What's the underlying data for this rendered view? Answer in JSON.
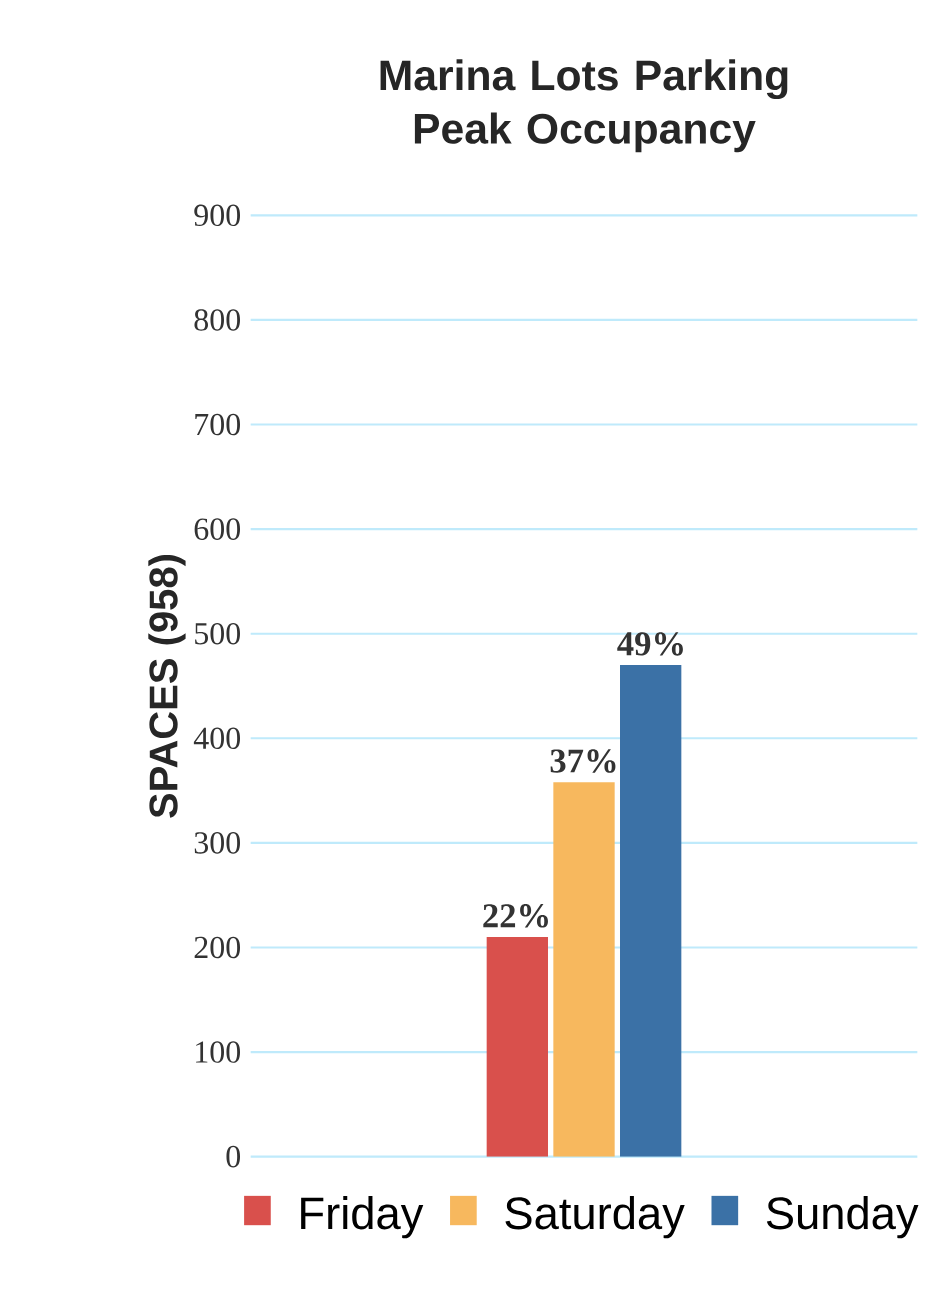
{
  "chart_data": {
    "type": "bar",
    "title": "Marina Lots Parking Peak Occupancy",
    "ylabel": "SPACES (958)",
    "categories": [
      null
    ],
    "series": [
      {
        "name": "Friday",
        "color": "#d9504c",
        "values": [
          210
        ]
      },
      {
        "name": "Saturday",
        "color": "#f7b85e",
        "values": [
          358
        ]
      },
      {
        "name": "Sunday",
        "color": "#3b71a6",
        "values": [
          470
        ]
      }
    ],
    "annotations": [
      {
        "text": "22%",
        "y": 210
      },
      {
        "text": "37%",
        "y": 358
      },
      {
        "text": "49%",
        "y": 470
      }
    ],
    "ylim": [
      0,
      900
    ],
    "yticks": [
      0,
      100,
      200,
      300,
      400,
      500,
      600,
      700,
      800,
      900
    ],
    "grid": "y",
    "legend": "bottom"
  }
}
